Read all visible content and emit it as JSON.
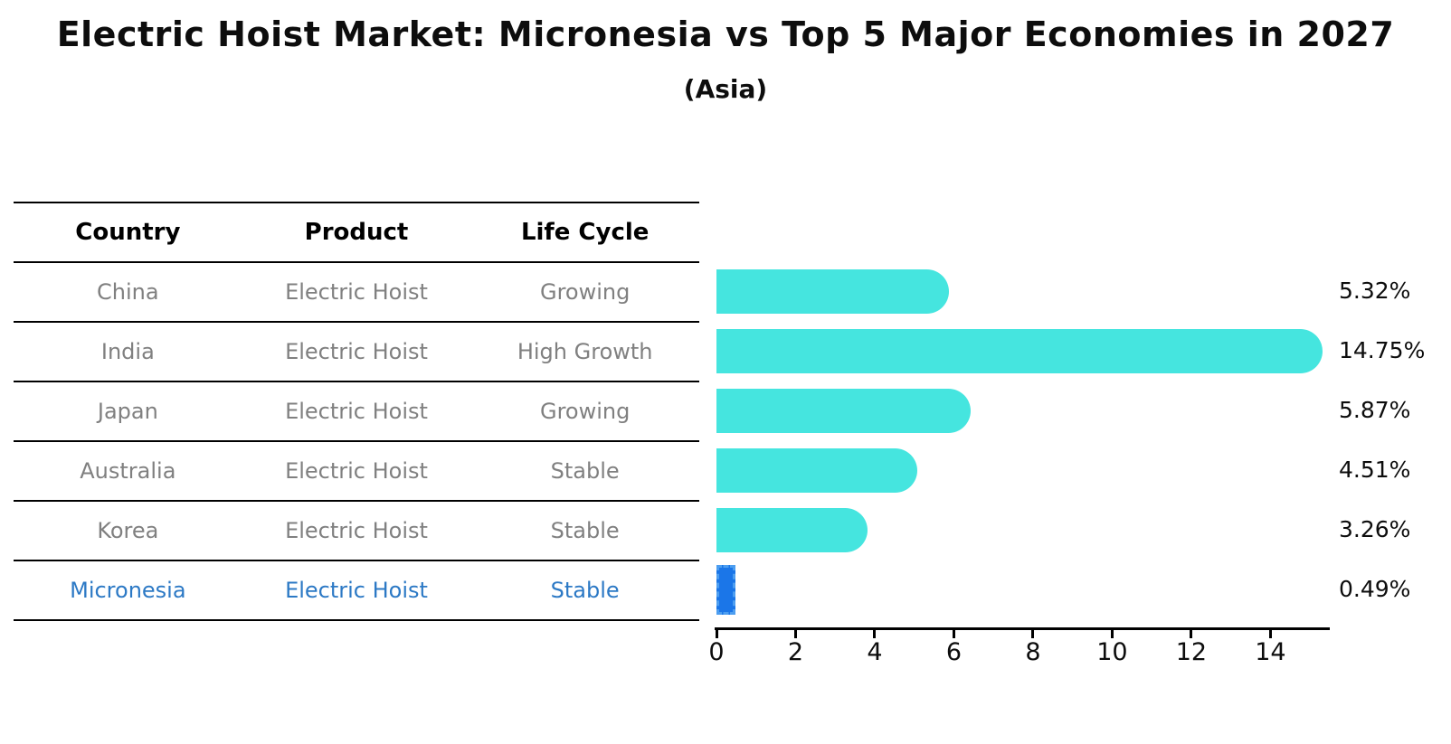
{
  "title": "Electric Hoist Market: Micronesia vs Top 5 Major Economies in 2027",
  "subtitle": "(Asia)",
  "table": {
    "headers": [
      "Country",
      "Product",
      "Life Cycle"
    ],
    "rows": [
      {
        "country": "China",
        "product": "Electric Hoist",
        "life_cycle": "Growing",
        "highlight": false
      },
      {
        "country": "India",
        "product": "Electric Hoist",
        "life_cycle": "High Growth",
        "highlight": false
      },
      {
        "country": "Japan",
        "product": "Electric Hoist",
        "life_cycle": "Growing",
        "highlight": false
      },
      {
        "country": "Australia",
        "product": "Electric Hoist",
        "life_cycle": "Stable",
        "highlight": false
      },
      {
        "country": "Korea",
        "product": "Electric Hoist",
        "life_cycle": "Stable",
        "highlight": true
      },
      {
        "country": "Micronesia",
        "product": "Electric Hoist",
        "life_cycle": "Stable",
        "highlight": true
      }
    ]
  },
  "chart_data": {
    "type": "bar",
    "orientation": "horizontal",
    "title": "Electric Hoist Market: Micronesia vs Top 5 Major Economies in 2027",
    "subtitle": "(Asia)",
    "categories": [
      "China",
      "India",
      "Japan",
      "Australia",
      "Korea",
      "Micronesia"
    ],
    "values": [
      5.32,
      14.75,
      5.87,
      4.51,
      3.26,
      0.49
    ],
    "value_labels": [
      "5.32%",
      "14.75%",
      "5.87%",
      "4.51%",
      "3.26%",
      "0.49%"
    ],
    "x_tick_labels": [
      "0",
      "2",
      "4",
      "6",
      "8",
      "10",
      "12",
      "14"
    ],
    "x_tick_values": [
      0,
      2,
      4,
      6,
      8,
      10,
      12,
      14
    ],
    "xlim": [
      0,
      15.5
    ],
    "grid": false,
    "legend": false,
    "highlight_index": 5,
    "bar_color": "#45E5DF",
    "highlight_bar_color": "#1B76E8",
    "highlight_bar_border_color": "#4D9EF0"
  },
  "colors": {
    "background": "#FFFFFF",
    "title_text": "#0D0D0D",
    "table_header_text": "#000000",
    "table_cell_text": "#808080",
    "highlight_text": "#2C79C5",
    "table_line": "#000000",
    "axis": "#000000",
    "bar": "#45E5DF",
    "highlight_bar": "#1B76E8"
  }
}
